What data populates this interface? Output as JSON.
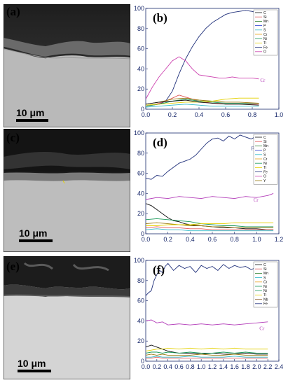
{
  "panels": [
    {
      "sem_label": "(a)",
      "scale_label": "10 μm",
      "chart_label": "(b)",
      "chart_data": {
        "type": "line",
        "xlim": [
          0,
          1.0
        ],
        "ylim": [
          0,
          100
        ],
        "xticks": [
          "0.0",
          "0.2",
          "0.4",
          "0.6",
          "0.8",
          "1.0"
        ],
        "yticks": [
          "0",
          "20",
          "40",
          "60",
          "80",
          "100"
        ],
        "legend": [
          "C",
          "Si",
          "Mn",
          "P",
          "S",
          "Cr",
          "Ni",
          "Ti",
          "Fe",
          "O"
        ],
        "legend_position": "top-right",
        "annotations": [
          {
            "text": "Fe",
            "x": 0.86,
            "y": 88,
            "color": "#1f2f7a"
          },
          {
            "text": "Cr",
            "x": 0.86,
            "y": 27,
            "color": "#b23bb8"
          }
        ],
        "series": [
          {
            "name": "Fe",
            "color": "#1f2f7a",
            "x": [
              0,
              0.05,
              0.1,
              0.15,
              0.2,
              0.25,
              0.3,
              0.35,
              0.4,
              0.45,
              0.5,
              0.55,
              0.6,
              0.65,
              0.7,
              0.75,
              0.8,
              0.85
            ],
            "y": [
              3,
              4,
              5,
              8,
              18,
              35,
              50,
              62,
              72,
              80,
              86,
              90,
              94,
              96,
              97,
              98,
              97,
              95
            ]
          },
          {
            "name": "Cr",
            "color": "#cc3fae",
            "x": [
              0,
              0.05,
              0.1,
              0.15,
              0.2,
              0.25,
              0.3,
              0.35,
              0.4,
              0.45,
              0.5,
              0.55,
              0.6,
              0.65,
              0.7,
              0.75,
              0.8,
              0.85
            ],
            "y": [
              10,
              22,
              32,
              40,
              48,
              52,
              48,
              40,
              34,
              33,
              32,
              31,
              31,
              32,
              31,
              31,
              31,
              30
            ]
          },
          {
            "name": "O",
            "color": "#e05555",
            "x": [
              0,
              0.05,
              0.1,
              0.15,
              0.2,
              0.25,
              0.3,
              0.35,
              0.4,
              0.45,
              0.5,
              0.55,
              0.6,
              0.65,
              0.7,
              0.75,
              0.8,
              0.85
            ],
            "y": [
              3,
              4,
              6,
              8,
              11,
              14,
              12,
              10,
              8,
              7,
              6,
              6,
              5,
              5,
              5,
              5,
              5,
              5
            ]
          },
          {
            "name": "Ni",
            "color": "#1a9a5a",
            "x": [
              0,
              0.1,
              0.2,
              0.3,
              0.4,
              0.5,
              0.6,
              0.7,
              0.85
            ],
            "y": [
              3,
              5,
              8,
              10,
              8,
              7,
              6,
              6,
              6
            ]
          },
          {
            "name": "Mn",
            "color": "#9a7a10",
            "x": [
              0,
              0.1,
              0.2,
              0.3,
              0.4,
              0.5,
              0.6,
              0.7,
              0.85
            ],
            "y": [
              5,
              7,
              10,
              11,
              9,
              8,
              7,
              7,
              6
            ]
          },
          {
            "name": "Ti",
            "color": "#e4d000",
            "x": [
              0,
              0.1,
              0.2,
              0.3,
              0.4,
              0.5,
              0.6,
              0.7,
              0.85
            ],
            "y": [
              4,
              5,
              6,
              7,
              7,
              8,
              10,
              11,
              11
            ]
          },
          {
            "name": "C",
            "color": "#111111",
            "x": [
              0,
              0.1,
              0.2,
              0.3,
              0.4,
              0.5,
              0.6,
              0.7,
              0.85
            ],
            "y": [
              5,
              7,
              8,
              9,
              7,
              6,
              5,
              5,
              4
            ]
          },
          {
            "name": "Si",
            "color": "#2fb8c8",
            "x": [
              0,
              0.1,
              0.2,
              0.3,
              0.4,
              0.5,
              0.6,
              0.7,
              0.85
            ],
            "y": [
              2,
              3,
              4,
              5,
              4,
              3,
              3,
              3,
              3
            ]
          }
        ]
      }
    },
    {
      "sem_label": "(c)",
      "scale_label": "10 μm",
      "chart_label": "(d)",
      "chart_data": {
        "type": "line",
        "xlim": [
          0,
          1.2
        ],
        "ylim": [
          0,
          100
        ],
        "xticks": [
          "0.0",
          "0.2",
          "0.4",
          "0.6",
          "0.8",
          "1.0",
          "1.2"
        ],
        "yticks": [
          "0",
          "20",
          "40",
          "60",
          "80",
          "100"
        ],
        "legend": [
          "C",
          "Si",
          "Mn",
          "P",
          "S",
          "Cr",
          "Ni",
          "Ti",
          "Fe",
          "O",
          "Y"
        ],
        "legend_position": "top-right",
        "annotations": [
          {
            "text": "Fe",
            "x": 0.95,
            "y": 83,
            "color": "#1f2f7a"
          },
          {
            "text": "Cr",
            "x": 0.97,
            "y": 32,
            "color": "#b23bb8"
          }
        ],
        "series": [
          {
            "name": "Fe",
            "color": "#1f2f7a",
            "x": [
              0,
              0.05,
              0.1,
              0.15,
              0.2,
              0.25,
              0.3,
              0.35,
              0.4,
              0.45,
              0.5,
              0.55,
              0.6,
              0.65,
              0.7,
              0.75,
              0.8,
              0.85,
              0.9,
              0.95,
              1.0,
              1.05,
              1.1,
              1.15
            ],
            "y": [
              55,
              54,
              58,
              57,
              62,
              66,
              70,
              72,
              74,
              78,
              84,
              90,
              94,
              95,
              92,
              97,
              94,
              98,
              96,
              94,
              97,
              95,
              94,
              92
            ]
          },
          {
            "name": "Cr",
            "color": "#b23bb8",
            "x": [
              0,
              0.1,
              0.2,
              0.3,
              0.4,
              0.5,
              0.6,
              0.7,
              0.8,
              0.9,
              1.0,
              1.1,
              1.15
            ],
            "y": [
              34,
              36,
              35,
              37,
              36,
              35,
              37,
              36,
              35,
              37,
              36,
              38,
              40
            ]
          },
          {
            "name": "C",
            "color": "#111111",
            "x": [
              0,
              0.05,
              0.1,
              0.15,
              0.2,
              0.25,
              0.3,
              0.35,
              0.4,
              0.5,
              0.6,
              0.7,
              0.8,
              0.9,
              1.0,
              1.1,
              1.15
            ],
            "y": [
              30,
              28,
              24,
              20,
              16,
              13,
              12,
              10,
              9,
              8,
              7,
              6,
              6,
              5,
              5,
              4,
              4
            ]
          },
          {
            "name": "Ni",
            "color": "#1a9a5a",
            "x": [
              0,
              0.1,
              0.2,
              0.3,
              0.4,
              0.5,
              0.6,
              0.7,
              0.8,
              0.9,
              1.0,
              1.15
            ],
            "y": [
              14,
              15,
              14,
              13,
              12,
              10,
              9,
              8,
              8,
              7,
              7,
              7
            ]
          },
          {
            "name": "Mn",
            "color": "#9a7a10",
            "x": [
              0,
              0.1,
              0.2,
              0.3,
              0.4,
              0.5,
              0.6,
              0.7,
              0.8,
              0.9,
              1.0,
              1.15
            ],
            "y": [
              10,
              11,
              10,
              9,
              8,
              8,
              7,
              7,
              6,
              6,
              6,
              6
            ]
          },
          {
            "name": "Ti",
            "color": "#e4d000",
            "x": [
              0,
              0.1,
              0.2,
              0.3,
              0.4,
              0.5,
              0.6,
              0.7,
              0.8,
              0.9,
              1.0,
              1.15
            ],
            "y": [
              8,
              8,
              9,
              9,
              9,
              10,
              10,
              10,
              11,
              11,
              11,
              11
            ]
          },
          {
            "name": "O",
            "color": "#e05555",
            "x": [
              0,
              0.1,
              0.2,
              0.3,
              0.4,
              0.5,
              0.6,
              0.7,
              0.8,
              0.9,
              1.0,
              1.15
            ],
            "y": [
              6,
              7,
              6,
              6,
              5,
              5,
              4,
              4,
              4,
              4,
              4,
              4
            ]
          },
          {
            "name": "Si",
            "color": "#2fb8c8",
            "x": [
              0,
              0.1,
              0.2,
              0.3,
              0.4,
              0.5,
              0.6,
              0.7,
              0.8,
              0.9,
              1.0,
              1.15
            ],
            "y": [
              4,
              5,
              4,
              4,
              3,
              3,
              3,
              3,
              3,
              3,
              3,
              3
            ]
          }
        ]
      }
    },
    {
      "sem_label": "(e)",
      "scale_label": "10 μm",
      "chart_label": "(f)",
      "chart_data": {
        "type": "line",
        "xlim": [
          0,
          2.4
        ],
        "ylim": [
          0,
          100
        ],
        "xticks": [
          "0.0",
          "0.2",
          "0.4",
          "0.6",
          "0.8",
          "1.0",
          "1.2",
          "1.4",
          "1.6",
          "1.8",
          "2.0",
          "2.2",
          "2.4"
        ],
        "yticks": [
          "0",
          "20",
          "40",
          "60",
          "80",
          "100"
        ],
        "legend": [
          "C",
          "Si",
          "Mn",
          "S",
          "Cr",
          "Ni",
          "Ni",
          "Ti",
          "Nb",
          "Fe"
        ],
        "legend_position": "top-right",
        "annotations": [
          {
            "text": "Fe",
            "x": 2.05,
            "y": 86,
            "color": "#1f2f7a"
          },
          {
            "text": "Cr",
            "x": 2.05,
            "y": 31,
            "color": "#b23bb8"
          }
        ],
        "series": [
          {
            "name": "Fe",
            "color": "#1f2f7a",
            "x": [
              0,
              0.05,
              0.1,
              0.15,
              0.2,
              0.25,
              0.3,
              0.35,
              0.4,
              0.5,
              0.6,
              0.7,
              0.8,
              0.9,
              1.0,
              1.1,
              1.2,
              1.3,
              1.4,
              1.5,
              1.6,
              1.7,
              1.8,
              1.9,
              2.0,
              2.1,
              2.2
            ],
            "y": [
              65,
              68,
              70,
              80,
              86,
              90,
              88,
              94,
              97,
              90,
              95,
              92,
              94,
              88,
              95,
              92,
              94,
              90,
              96,
              92,
              95,
              93,
              94,
              91,
              93,
              92,
              90
            ]
          },
          {
            "name": "Cr",
            "color": "#b23bb8",
            "x": [
              0,
              0.1,
              0.2,
              0.3,
              0.4,
              0.6,
              0.8,
              1.0,
              1.2,
              1.4,
              1.6,
              1.8,
              2.0,
              2.2
            ],
            "y": [
              40,
              41,
              38,
              39,
              36,
              37,
              36,
              37,
              36,
              37,
              36,
              37,
              38,
              39
            ]
          },
          {
            "name": "C",
            "color": "#111111",
            "x": [
              0,
              0.1,
              0.2,
              0.3,
              0.4,
              0.6,
              0.8,
              1.0,
              1.2,
              1.4,
              1.6,
              1.8,
              2.0,
              2.2
            ],
            "y": [
              14,
              16,
              14,
              12,
              10,
              8,
              8,
              7,
              8,
              7,
              7,
              8,
              7,
              7
            ]
          },
          {
            "name": "Ti",
            "color": "#e4d000",
            "x": [
              0,
              0.1,
              0.2,
              0.3,
              0.4,
              0.6,
              0.8,
              1.0,
              1.2,
              1.4,
              1.6,
              1.8,
              2.0,
              2.2
            ],
            "y": [
              10,
              11,
              12,
              12,
              13,
              12,
              13,
              12,
              13,
              12,
              13,
              12,
              12,
              12
            ]
          },
          {
            "name": "Ni",
            "color": "#1a9a5a",
            "x": [
              0,
              0.1,
              0.2,
              0.3,
              0.4,
              0.6,
              0.8,
              1.0,
              1.2,
              1.4,
              1.6,
              1.8,
              2.0,
              2.2
            ],
            "y": [
              8,
              9,
              9,
              8,
              9,
              8,
              9,
              8,
              8,
              9,
              8,
              9,
              8,
              8
            ]
          },
          {
            "name": "Mn",
            "color": "#9a7a10",
            "x": [
              0,
              0.1,
              0.2,
              0.3,
              0.4,
              0.6,
              0.8,
              1.0,
              1.2,
              1.4,
              1.6,
              1.8,
              2.0,
              2.2
            ],
            "y": [
              6,
              7,
              6,
              7,
              6,
              6,
              6,
              7,
              6,
              6,
              7,
              6,
              6,
              6
            ]
          },
          {
            "name": "Si",
            "color": "#2fb8c8",
            "x": [
              0,
              0.1,
              0.2,
              0.3,
              0.4,
              0.6,
              0.8,
              1.0,
              1.2,
              1.4,
              1.6,
              1.8,
              2.0,
              2.2
            ],
            "y": [
              4,
              4,
              5,
              4,
              4,
              4,
              5,
              4,
              4,
              4,
              5,
              4,
              4,
              4
            ]
          },
          {
            "name": "Nb",
            "color": "#e05555",
            "x": [
              0,
              0.1,
              0.2,
              0.3,
              0.4,
              0.6,
              0.8,
              1.0,
              1.2,
              1.4,
              1.6,
              1.8,
              2.0,
              2.2
            ],
            "y": [
              3,
              3,
              4,
              3,
              3,
              3,
              3,
              3,
              3,
              3,
              3,
              3,
              3,
              3
            ]
          }
        ]
      }
    }
  ],
  "legend_colors": {
    "C": "#111111",
    "Si": "#e05555",
    "Mn": "#2c7f2c",
    "P": "#2a3fd0",
    "S": "#2fb8c8",
    "Cr": "#e9a21a",
    "Ni": "#1a9a5a",
    "Ti": "#e4d000",
    "Fe": "#1f2f7a",
    "O": "#cc3fae",
    "Y": "#9a7a10",
    "Nb": "#8a5a2a"
  }
}
